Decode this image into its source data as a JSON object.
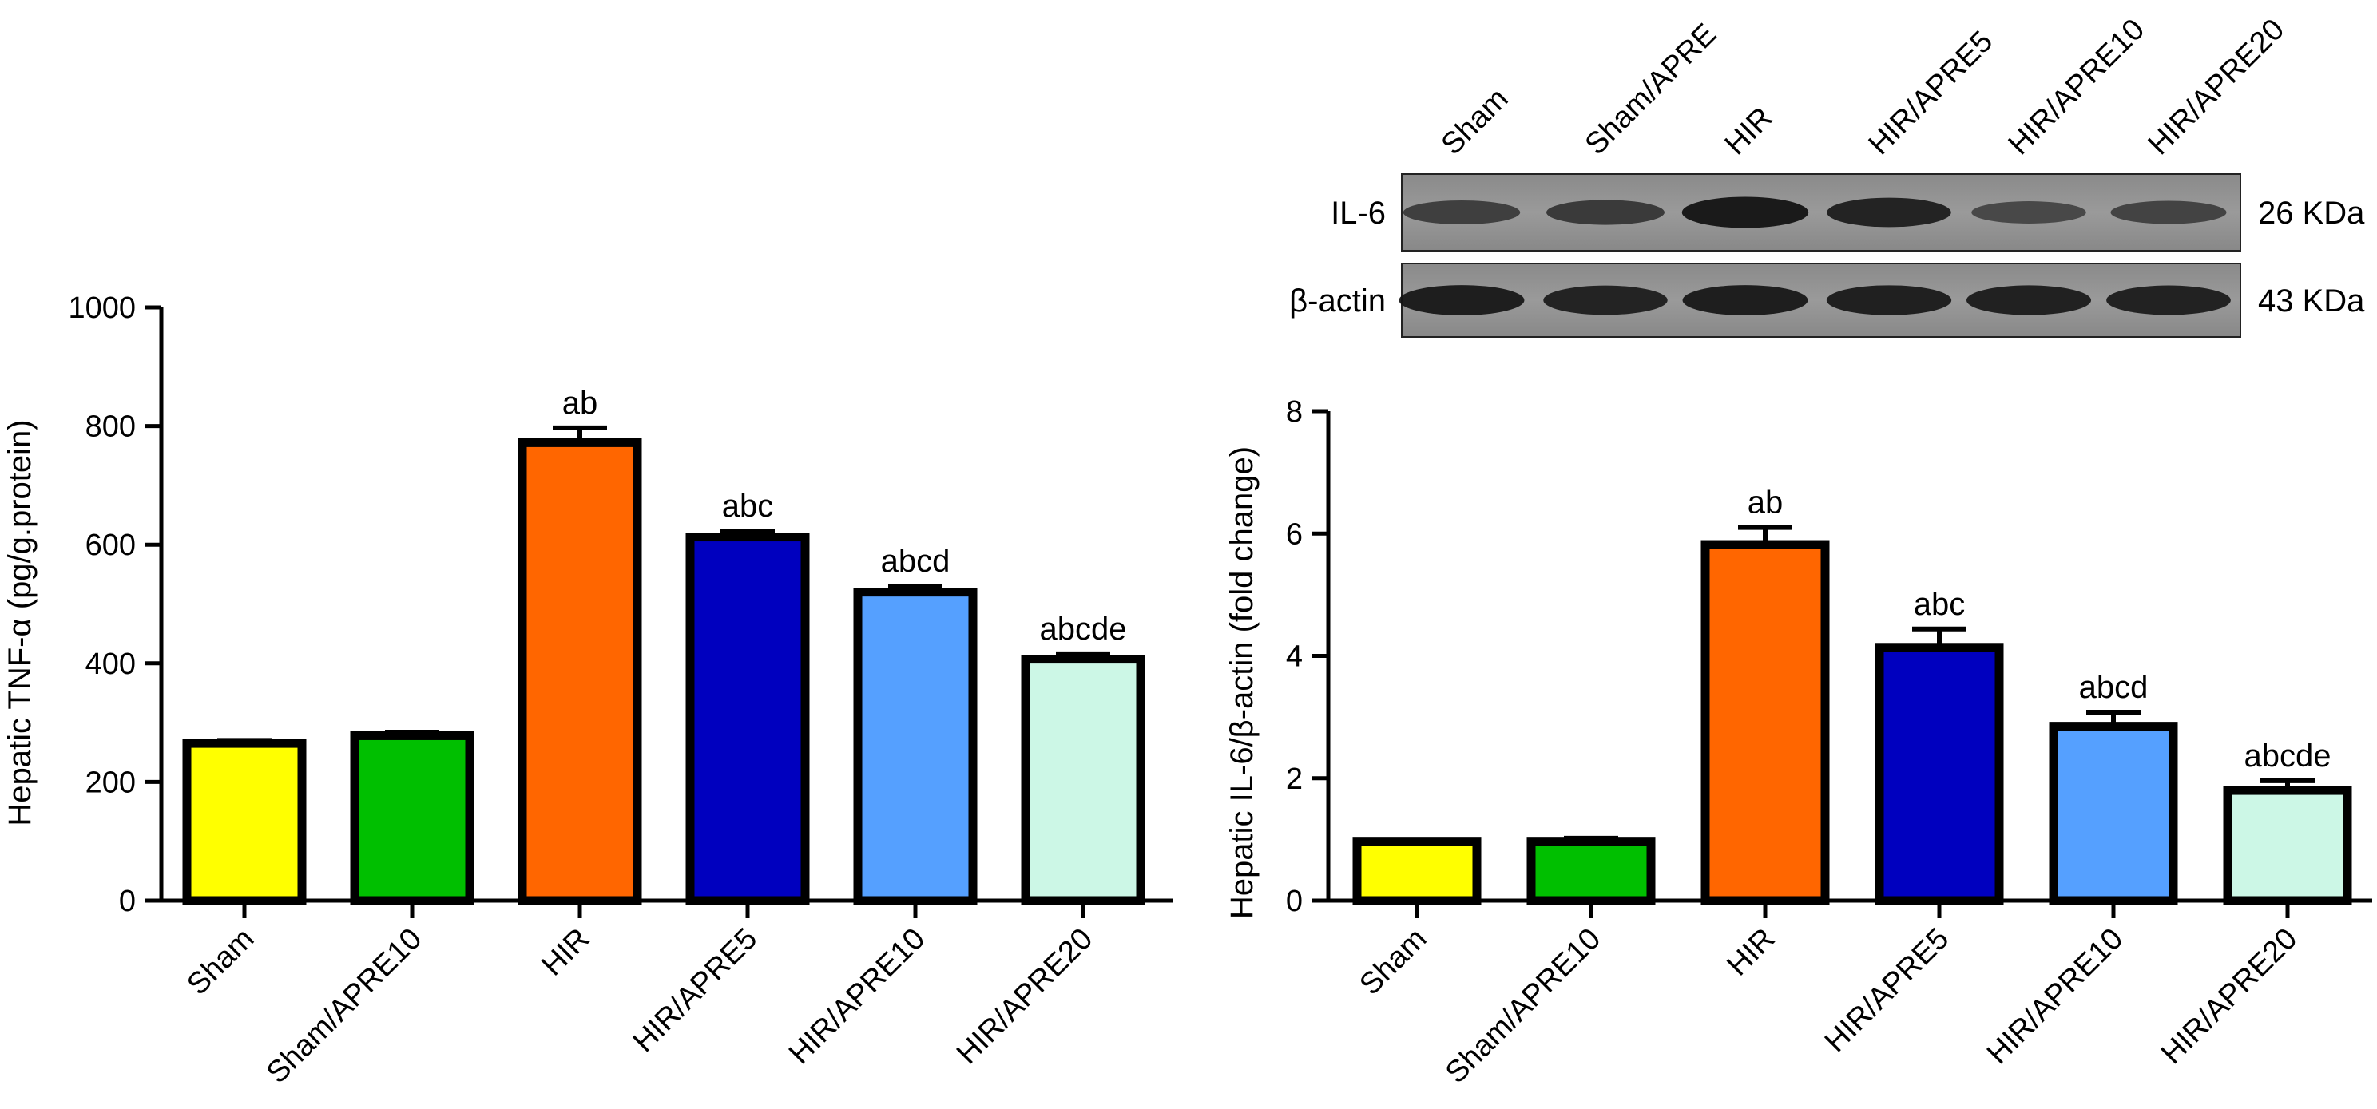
{
  "chart_data": [
    {
      "type": "bar",
      "title": "",
      "xlabel": "",
      "ylabel": "Hepatic TNF-α (pg/g.protein)",
      "ylim": [
        0,
        1000
      ],
      "yticks": [
        0,
        200,
        400,
        600,
        800,
        1000
      ],
      "categories": [
        "Sham",
        "Sham/APRE10",
        "HIR",
        "HIR/APRE5",
        "HIR/APRE10",
        "HIR/APRE20"
      ],
      "values": [
        265,
        278,
        772,
        613,
        520,
        407
      ],
      "errors": [
        5,
        6,
        25,
        10,
        10,
        9
      ],
      "annotations": [
        "",
        "",
        "ab",
        "abc",
        "abcd",
        "abcde"
      ],
      "colors": [
        "#ffff00",
        "#00bf00",
        "#ff6600",
        "#0000bf",
        "#55a0ff",
        "#ccf7e6"
      ],
      "grid": false
    },
    {
      "type": "bar",
      "title": "",
      "xlabel": "",
      "ylabel": "Hepatic IL-6/β-actin (fold change)",
      "ylim": [
        0,
        8
      ],
      "yticks": [
        0,
        2,
        4,
        6,
        8
      ],
      "categories": [
        "Sham",
        "Sham/APRE10",
        "HIR",
        "HIR/APRE5",
        "HIR/APRE10",
        "HIR/APRE20"
      ],
      "values": [
        0.97,
        0.97,
        5.82,
        4.14,
        2.85,
        1.8
      ],
      "errors": [
        0.02,
        0.05,
        0.28,
        0.3,
        0.23,
        0.16
      ],
      "annotations": [
        "",
        "",
        "ab",
        "abc",
        "abcd",
        "abcde"
      ],
      "colors": [
        "#ffff00",
        "#00bf00",
        "#ff6600",
        "#0000bf",
        "#55a0ff",
        "#ccf7e6"
      ],
      "grid": false
    }
  ],
  "western_blot": {
    "lanes": [
      "Sham",
      "Sham/APRE",
      "HIR",
      "HIR/APRE5",
      "HIR/APRE10",
      "HIR/APRE20"
    ],
    "rows": [
      {
        "protein": "IL-6",
        "size": "26 KDa",
        "intensity": [
          0.55,
          0.6,
          0.95,
          0.85,
          0.45,
          0.5
        ]
      },
      {
        "protein": "β-actin",
        "size": "43 KDa",
        "intensity": [
          0.9,
          0.85,
          0.9,
          0.88,
          0.87,
          0.86
        ]
      }
    ]
  }
}
